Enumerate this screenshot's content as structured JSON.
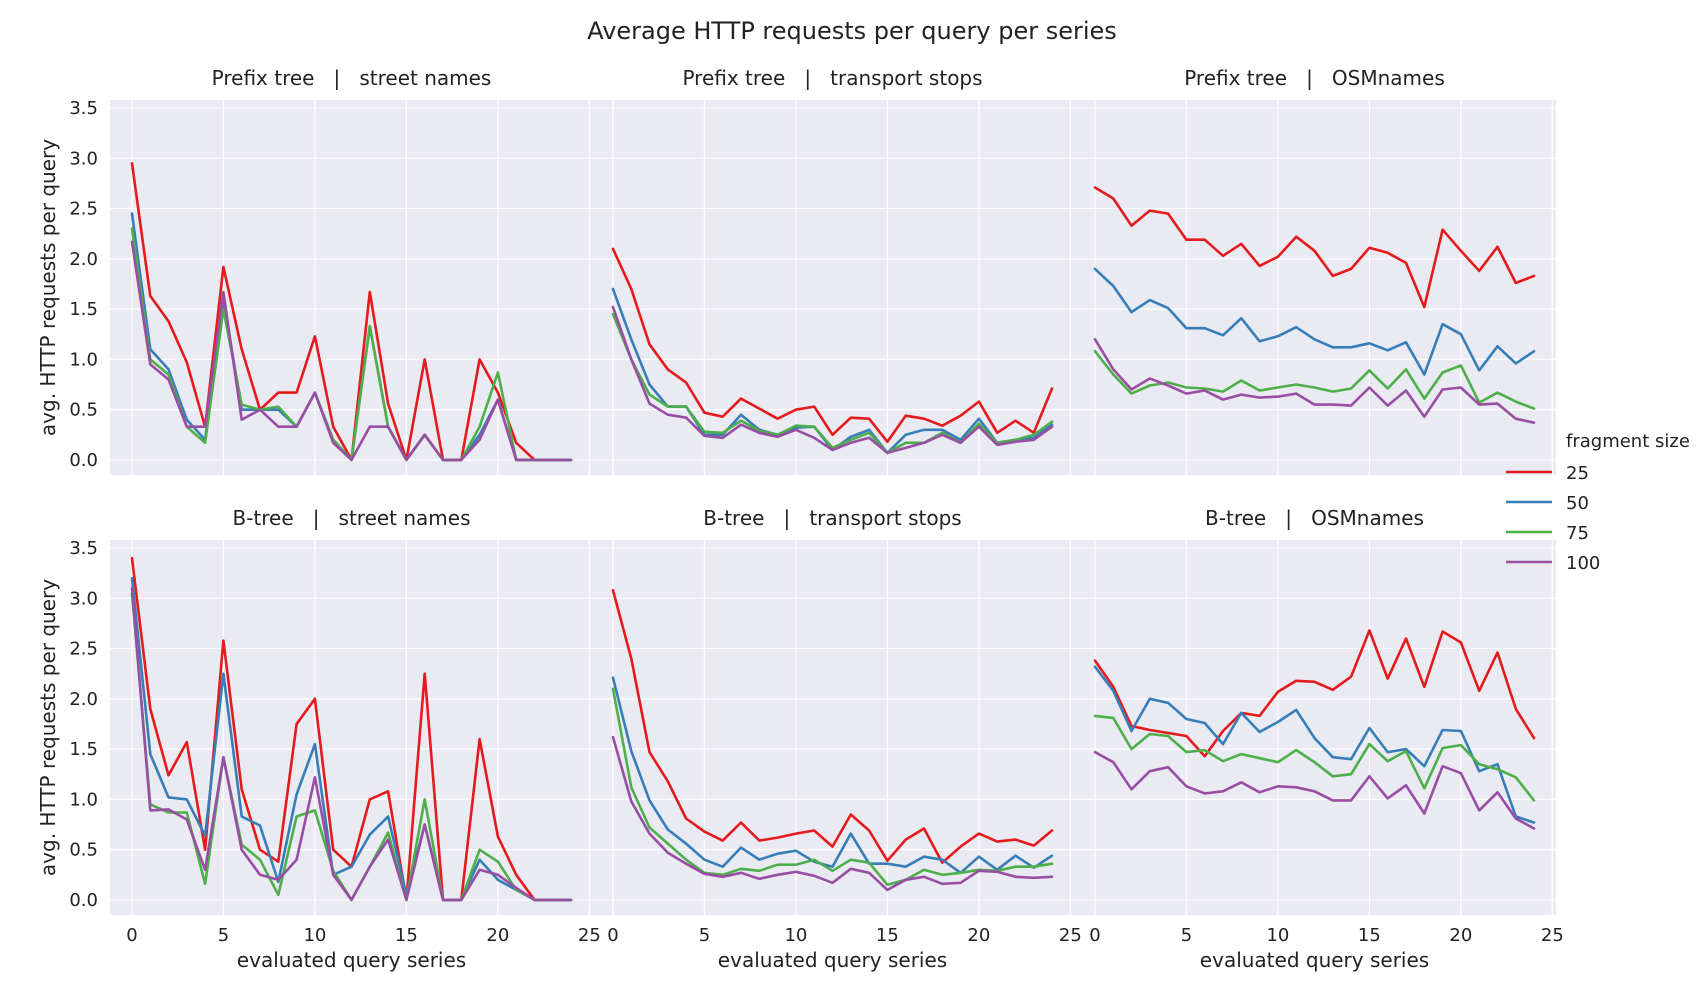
{
  "figure": {
    "title": "Average HTTP requests per query per series",
    "legend_title": "fragment size",
    "legend_placement": "right"
  },
  "colors": {
    "panel_background": "#eaeaf2",
    "grid": "#ffffff",
    "series": [
      "#e41a1c",
      "#377eb8",
      "#4daf4a",
      "#984ea3"
    ]
  },
  "chart_data": [
    {
      "type": "line",
      "title": "Prefix tree   |   street names",
      "xlabel": "",
      "ylabel": "avg. HTTP requests per query",
      "xlim": [
        -1.2,
        25.2
      ],
      "ylim": [
        -0.15,
        3.58
      ],
      "xticks": [
        0,
        5,
        10,
        15,
        20,
        25
      ],
      "yticks": [
        0.0,
        0.5,
        1.0,
        1.5,
        2.0,
        2.5,
        3.0,
        3.5
      ],
      "grid": true,
      "x": [
        0,
        1,
        2,
        3,
        4,
        5,
        6,
        7,
        8,
        9,
        10,
        11,
        12,
        13,
        14,
        15,
        16,
        17,
        18,
        19,
        20,
        21,
        22,
        23,
        24
      ],
      "series": [
        {
          "name": "25",
          "values": [
            2.95,
            1.63,
            1.38,
            0.97,
            0.33,
            1.92,
            1.1,
            0.5,
            0.67,
            0.67,
            1.23,
            0.33,
            0.0,
            1.67,
            0.56,
            0.0,
            1.0,
            0.0,
            0.0,
            1.0,
            0.67,
            0.17,
            0.0,
            0.0,
            0.0
          ]
        },
        {
          "name": "50",
          "values": [
            2.45,
            1.1,
            0.9,
            0.4,
            0.2,
            1.6,
            0.5,
            0.5,
            0.5,
            0.33,
            0.67,
            0.2,
            0.0,
            1.33,
            0.33,
            0.0,
            0.25,
            0.0,
            0.0,
            0.25,
            0.6,
            0.0,
            0.0,
            0.0,
            0.0
          ]
        },
        {
          "name": "75",
          "values": [
            2.3,
            1.0,
            0.85,
            0.33,
            0.17,
            1.5,
            0.55,
            0.5,
            0.53,
            0.33,
            0.67,
            0.2,
            0.0,
            1.33,
            0.33,
            0.0,
            0.25,
            0.0,
            0.0,
            0.33,
            0.87,
            0.0,
            0.0,
            0.0,
            0.0
          ]
        },
        {
          "name": "100",
          "values": [
            2.17,
            0.95,
            0.8,
            0.33,
            0.33,
            1.67,
            0.4,
            0.5,
            0.33,
            0.33,
            0.67,
            0.17,
            0.0,
            0.33,
            0.33,
            0.0,
            0.25,
            0.0,
            0.0,
            0.2,
            0.6,
            0.0,
            0.0,
            0.0,
            0.0
          ]
        }
      ]
    },
    {
      "type": "line",
      "title": "Prefix tree   |   transport stops",
      "xlabel": "",
      "ylabel": "",
      "xlim": [
        -1.2,
        25.2
      ],
      "ylim": [
        -0.15,
        3.58
      ],
      "xticks": [
        0,
        5,
        10,
        15,
        20,
        25
      ],
      "yticks": [
        0.0,
        0.5,
        1.0,
        1.5,
        2.0,
        2.5,
        3.0,
        3.5
      ],
      "grid": true,
      "x": [
        0,
        1,
        2,
        3,
        4,
        5,
        6,
        7,
        8,
        9,
        10,
        11,
        12,
        13,
        14,
        15,
        16,
        17,
        18,
        19,
        20,
        21,
        22,
        23,
        24
      ],
      "series": [
        {
          "name": "25",
          "values": [
            2.1,
            1.7,
            1.15,
            0.9,
            0.77,
            0.47,
            0.43,
            0.61,
            0.51,
            0.41,
            0.5,
            0.53,
            0.25,
            0.42,
            0.41,
            0.18,
            0.44,
            0.41,
            0.34,
            0.44,
            0.58,
            0.27,
            0.39,
            0.27,
            0.71
          ]
        },
        {
          "name": "50",
          "values": [
            1.7,
            1.2,
            0.75,
            0.53,
            0.53,
            0.25,
            0.25,
            0.45,
            0.3,
            0.25,
            0.32,
            0.33,
            0.1,
            0.23,
            0.3,
            0.07,
            0.25,
            0.3,
            0.3,
            0.2,
            0.41,
            0.17,
            0.2,
            0.22,
            0.35
          ]
        },
        {
          "name": "75",
          "values": [
            1.45,
            1.0,
            0.65,
            0.53,
            0.53,
            0.28,
            0.27,
            0.39,
            0.29,
            0.25,
            0.34,
            0.33,
            0.12,
            0.2,
            0.27,
            0.07,
            0.17,
            0.17,
            0.27,
            0.17,
            0.36,
            0.17,
            0.2,
            0.25,
            0.38
          ]
        },
        {
          "name": "100",
          "values": [
            1.52,
            1.0,
            0.56,
            0.45,
            0.42,
            0.24,
            0.22,
            0.35,
            0.27,
            0.23,
            0.3,
            0.22,
            0.1,
            0.17,
            0.22,
            0.07,
            0.12,
            0.17,
            0.25,
            0.17,
            0.33,
            0.15,
            0.18,
            0.2,
            0.33
          ]
        }
      ]
    },
    {
      "type": "line",
      "title": "Prefix tree   |   OSMnames",
      "xlabel": "",
      "ylabel": "",
      "xlim": [
        -1.2,
        25.2
      ],
      "ylim": [
        -0.15,
        3.58
      ],
      "xticks": [
        0,
        5,
        10,
        15,
        20,
        25
      ],
      "yticks": [
        0.0,
        0.5,
        1.0,
        1.5,
        2.0,
        2.5,
        3.0,
        3.5
      ],
      "grid": true,
      "x": [
        0,
        1,
        2,
        3,
        4,
        5,
        6,
        7,
        8,
        9,
        10,
        11,
        12,
        13,
        14,
        15,
        16,
        17,
        18,
        19,
        20,
        21,
        22,
        23,
        24
      ],
      "series": [
        {
          "name": "25",
          "values": [
            2.71,
            2.6,
            2.33,
            2.48,
            2.45,
            2.19,
            2.19,
            2.03,
            2.15,
            1.93,
            2.02,
            2.22,
            2.08,
            1.83,
            1.9,
            2.11,
            2.06,
            1.96,
            1.52,
            2.29,
            2.08,
            1.88,
            2.12,
            1.76,
            1.83
          ]
        },
        {
          "name": "50",
          "values": [
            1.9,
            1.73,
            1.47,
            1.59,
            1.51,
            1.31,
            1.31,
            1.24,
            1.41,
            1.18,
            1.23,
            1.32,
            1.2,
            1.12,
            1.12,
            1.16,
            1.09,
            1.17,
            0.85,
            1.35,
            1.25,
            0.89,
            1.13,
            0.96,
            1.08
          ]
        },
        {
          "name": "75",
          "values": [
            1.08,
            0.85,
            0.66,
            0.74,
            0.77,
            0.72,
            0.71,
            0.68,
            0.79,
            0.69,
            0.72,
            0.75,
            0.72,
            0.68,
            0.71,
            0.89,
            0.71,
            0.9,
            0.61,
            0.87,
            0.94,
            0.57,
            0.67,
            0.58,
            0.51
          ]
        },
        {
          "name": "100",
          "values": [
            1.2,
            0.9,
            0.7,
            0.81,
            0.74,
            0.66,
            0.69,
            0.6,
            0.65,
            0.62,
            0.63,
            0.66,
            0.55,
            0.55,
            0.54,
            0.72,
            0.54,
            0.69,
            0.43,
            0.7,
            0.72,
            0.55,
            0.56,
            0.41,
            0.37
          ]
        }
      ]
    },
    {
      "type": "line",
      "title": "B-tree   |   street names",
      "xlabel": "evaluated query series",
      "ylabel": "avg. HTTP requests per query",
      "xlim": [
        -1.2,
        25.2
      ],
      "ylim": [
        -0.15,
        3.58
      ],
      "xticks": [
        0,
        5,
        10,
        15,
        20,
        25
      ],
      "yticks": [
        0.0,
        0.5,
        1.0,
        1.5,
        2.0,
        2.5,
        3.0,
        3.5
      ],
      "grid": true,
      "x": [
        0,
        1,
        2,
        3,
        4,
        5,
        6,
        7,
        8,
        9,
        10,
        11,
        12,
        13,
        14,
        15,
        16,
        17,
        18,
        19,
        20,
        21,
        22,
        23,
        24
      ],
      "series": [
        {
          "name": "25",
          "values": [
            3.4,
            1.9,
            1.24,
            1.57,
            0.5,
            2.58,
            1.1,
            0.5,
            0.38,
            1.75,
            2.0,
            0.5,
            0.33,
            1.0,
            1.08,
            0.0,
            2.25,
            0.0,
            0.0,
            1.6,
            0.63,
            0.25,
            0.0,
            0.0,
            0.0
          ]
        },
        {
          "name": "50",
          "values": [
            3.2,
            1.45,
            1.02,
            1.0,
            0.64,
            2.25,
            0.83,
            0.74,
            0.18,
            1.05,
            1.55,
            0.25,
            0.33,
            0.65,
            0.83,
            0.05,
            0.75,
            0.0,
            0.0,
            0.4,
            0.2,
            0.1,
            0.0,
            0.0,
            0.0
          ]
        },
        {
          "name": "75",
          "values": [
            3.05,
            0.95,
            0.87,
            0.87,
            0.16,
            1.42,
            0.55,
            0.4,
            0.05,
            0.83,
            0.89,
            0.29,
            0.0,
            0.33,
            0.67,
            0.0,
            1.0,
            0.0,
            0.0,
            0.5,
            0.38,
            0.1,
            0.0,
            0.0,
            0.0
          ]
        },
        {
          "name": "100",
          "values": [
            3.1,
            0.89,
            0.9,
            0.8,
            0.3,
            1.42,
            0.5,
            0.25,
            0.2,
            0.4,
            1.22,
            0.25,
            0.0,
            0.33,
            0.6,
            0.0,
            0.75,
            0.0,
            0.0,
            0.3,
            0.25,
            0.12,
            0.0,
            0.0,
            0.0
          ]
        }
      ]
    },
    {
      "type": "line",
      "title": "B-tree   |   transport stops",
      "xlabel": "evaluated query series",
      "ylabel": "",
      "xlim": [
        -1.2,
        25.2
      ],
      "ylim": [
        -0.15,
        3.58
      ],
      "xticks": [
        0,
        5,
        10,
        15,
        20,
        25
      ],
      "yticks": [
        0.0,
        0.5,
        1.0,
        1.5,
        2.0,
        2.5,
        3.0,
        3.5
      ],
      "grid": true,
      "x": [
        0,
        1,
        2,
        3,
        4,
        5,
        6,
        7,
        8,
        9,
        10,
        11,
        12,
        13,
        14,
        15,
        16,
        17,
        18,
        19,
        20,
        21,
        22,
        23,
        24
      ],
      "series": [
        {
          "name": "25",
          "values": [
            3.08,
            2.4,
            1.47,
            1.18,
            0.81,
            0.68,
            0.59,
            0.77,
            0.59,
            0.62,
            0.66,
            0.69,
            0.53,
            0.85,
            0.69,
            0.39,
            0.6,
            0.71,
            0.37,
            0.53,
            0.66,
            0.58,
            0.6,
            0.54,
            0.69
          ]
        },
        {
          "name": "50",
          "values": [
            2.21,
            1.48,
            0.99,
            0.7,
            0.56,
            0.4,
            0.33,
            0.52,
            0.4,
            0.46,
            0.49,
            0.38,
            0.33,
            0.66,
            0.36,
            0.36,
            0.33,
            0.43,
            0.4,
            0.27,
            0.43,
            0.3,
            0.44,
            0.32,
            0.44
          ]
        },
        {
          "name": "75",
          "values": [
            2.1,
            1.12,
            0.72,
            0.56,
            0.4,
            0.27,
            0.25,
            0.31,
            0.29,
            0.35,
            0.35,
            0.4,
            0.29,
            0.4,
            0.37,
            0.15,
            0.2,
            0.3,
            0.25,
            0.27,
            0.3,
            0.29,
            0.33,
            0.33,
            0.36
          ]
        },
        {
          "name": "100",
          "values": [
            1.62,
            0.98,
            0.66,
            0.47,
            0.36,
            0.26,
            0.23,
            0.27,
            0.21,
            0.25,
            0.28,
            0.24,
            0.17,
            0.31,
            0.27,
            0.1,
            0.2,
            0.23,
            0.16,
            0.17,
            0.29,
            0.28,
            0.23,
            0.22,
            0.23
          ]
        }
      ]
    },
    {
      "type": "line",
      "title": "B-tree   |   OSMnames",
      "xlabel": "evaluated query series",
      "ylabel": "",
      "xlim": [
        -1.2,
        25.2
      ],
      "ylim": [
        -0.15,
        3.58
      ],
      "xticks": [
        0,
        5,
        10,
        15,
        20,
        25
      ],
      "yticks": [
        0.0,
        0.5,
        1.0,
        1.5,
        2.0,
        2.5,
        3.0,
        3.5
      ],
      "grid": true,
      "x": [
        0,
        1,
        2,
        3,
        4,
        5,
        6,
        7,
        8,
        9,
        10,
        11,
        12,
        13,
        14,
        15,
        16,
        17,
        18,
        19,
        20,
        21,
        22,
        23,
        24
      ],
      "series": [
        {
          "name": "25",
          "values": [
            2.38,
            2.12,
            1.73,
            1.69,
            1.66,
            1.63,
            1.43,
            1.68,
            1.86,
            1.83,
            2.07,
            2.18,
            2.17,
            2.09,
            2.22,
            2.68,
            2.2,
            2.6,
            2.12,
            2.67,
            2.56,
            2.08,
            2.46,
            1.9,
            1.61
          ]
        },
        {
          "name": "50",
          "values": [
            2.32,
            2.08,
            1.68,
            2.0,
            1.96,
            1.8,
            1.76,
            1.55,
            1.86,
            1.67,
            1.77,
            1.89,
            1.61,
            1.42,
            1.4,
            1.71,
            1.47,
            1.5,
            1.33,
            1.69,
            1.68,
            1.28,
            1.35,
            0.83,
            0.77
          ]
        },
        {
          "name": "75",
          "values": [
            1.83,
            1.81,
            1.5,
            1.65,
            1.63,
            1.47,
            1.49,
            1.38,
            1.45,
            1.41,
            1.37,
            1.49,
            1.37,
            1.23,
            1.25,
            1.55,
            1.38,
            1.48,
            1.11,
            1.51,
            1.54,
            1.35,
            1.3,
            1.22,
            0.99
          ]
        },
        {
          "name": "100",
          "values": [
            1.47,
            1.37,
            1.1,
            1.28,
            1.32,
            1.13,
            1.06,
            1.08,
            1.17,
            1.07,
            1.13,
            1.12,
            1.08,
            0.99,
            0.99,
            1.23,
            1.01,
            1.14,
            0.86,
            1.33,
            1.26,
            0.89,
            1.07,
            0.81,
            0.71
          ]
        }
      ]
    }
  ]
}
